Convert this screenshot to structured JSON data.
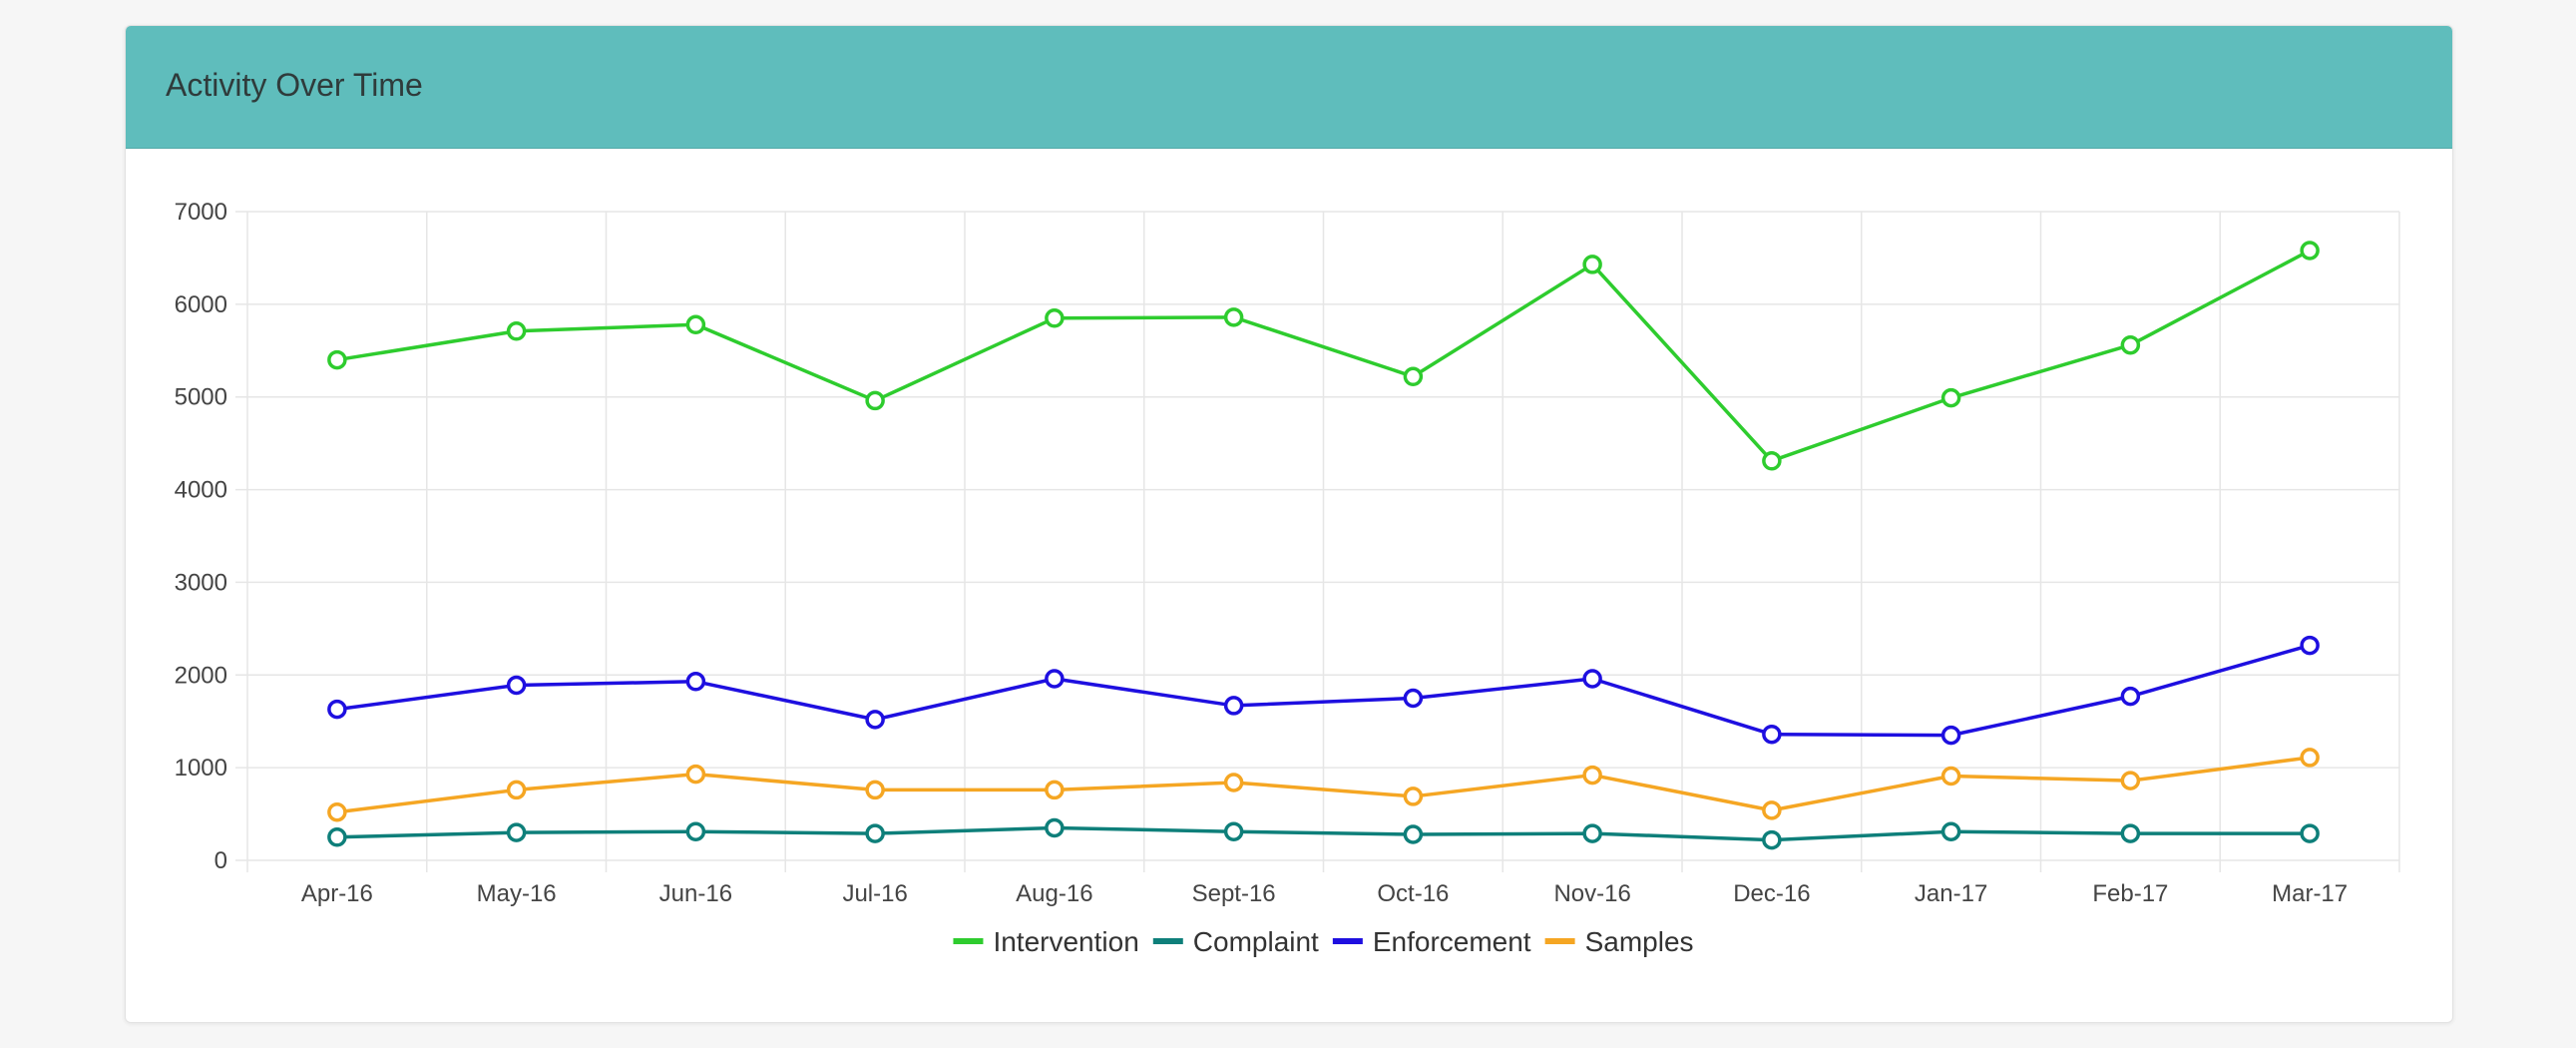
{
  "panel": {
    "title": "Activity Over Time"
  },
  "chart_data": {
    "type": "line",
    "title": "",
    "xlabel": "",
    "ylabel": "",
    "categories": [
      "Apr-16",
      "May-16",
      "Jun-16",
      "Jul-16",
      "Aug-16",
      "Sept-16",
      "Oct-16",
      "Nov-16",
      "Dec-16",
      "Jan-17",
      "Feb-17",
      "Mar-17"
    ],
    "ylim": [
      0,
      7000
    ],
    "yticks": [
      "0",
      "1000",
      "2000",
      "3000",
      "4000",
      "5000",
      "6000",
      "7000"
    ],
    "grid": true,
    "legend_position": "bottom",
    "series": [
      {
        "name": "Intervention",
        "color": "#2ecc2e",
        "values": [
          5400,
          5710,
          5780,
          4960,
          5850,
          5860,
          5220,
          6430,
          4310,
          4990,
          5560,
          6580
        ]
      },
      {
        "name": "Complaint",
        "color": "#0e7f7a",
        "values": [
          250,
          300,
          310,
          290,
          350,
          310,
          280,
          290,
          220,
          310,
          290,
          290
        ]
      },
      {
        "name": "Enforcement",
        "color": "#1e0fe0",
        "values": [
          1630,
          1890,
          1930,
          1520,
          1960,
          1670,
          1750,
          1960,
          1360,
          1350,
          1770,
          2320
        ]
      },
      {
        "name": "Samples",
        "color": "#f5a623",
        "values": [
          520,
          760,
          930,
          760,
          760,
          840,
          690,
          920,
          540,
          910,
          860,
          1110
        ]
      }
    ]
  }
}
